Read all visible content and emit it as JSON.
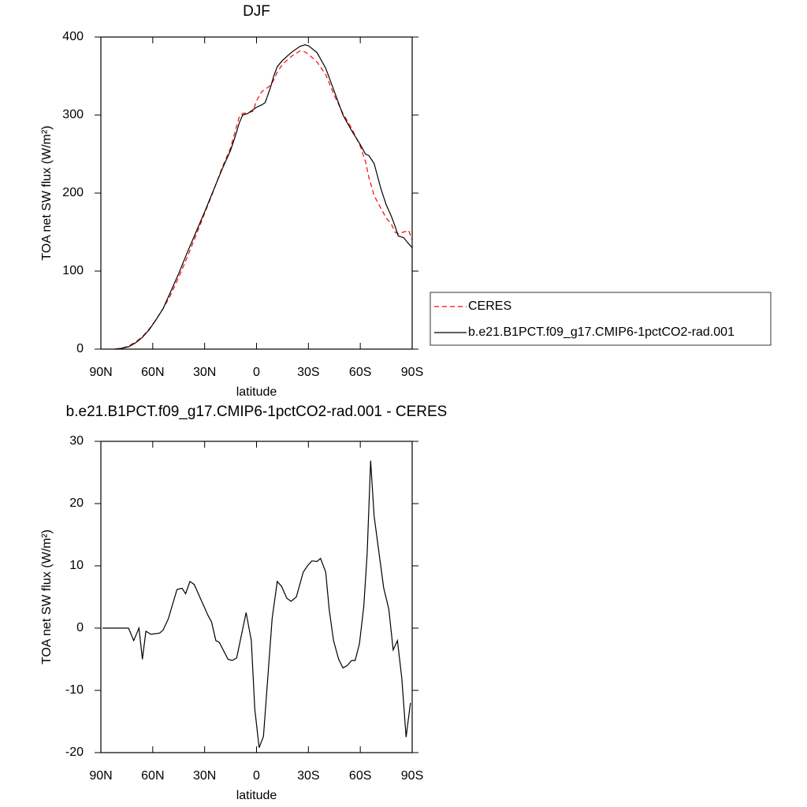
{
  "chart_data": [
    {
      "type": "line",
      "title": "DJF",
      "xlabel": "latitude",
      "ylabel": "TOA net SW flux (W/m²)",
      "x": [
        82,
        78,
        74,
        70,
        66,
        62,
        58,
        54,
        50,
        45,
        40,
        35,
        30,
        25,
        20,
        15,
        12,
        10,
        8,
        5,
        2,
        0,
        -3,
        -5,
        -8,
        -10,
        -12,
        -15,
        -20,
        -25,
        -28,
        -30,
        -35,
        -40,
        -45,
        -50,
        -55,
        -60,
        -63,
        -65,
        -68,
        -72,
        -75,
        -78,
        -80,
        -82,
        -85,
        -88,
        -90
      ],
      "series": [
        {
          "name": "CERES",
          "color": "#ff0000",
          "dash": true,
          "values": [
            0,
            1,
            4,
            9,
            16,
            26,
            38,
            52,
            68,
            92,
            118,
            146,
            174,
            202,
            232,
            258,
            282,
            298,
            302,
            303,
            305,
            318,
            330,
            333,
            338,
            345,
            355,
            365,
            375,
            382,
            381,
            378,
            368,
            352,
            325,
            302,
            283,
            260,
            240,
            220,
            197,
            180,
            168,
            160,
            150,
            148,
            150,
            152,
            140
          ]
        },
        {
          "name": "b.e21.B1PCT.f09_g17.CMIP6-1pctCO2-rad.001",
          "color": "#000000",
          "dash": false,
          "values": [
            0,
            1,
            3,
            8,
            15,
            25,
            38,
            52,
            72,
            97,
            124,
            150,
            176,
            203,
            230,
            255,
            275,
            290,
            300,
            302,
            307,
            310,
            313,
            316,
            335,
            350,
            362,
            370,
            380,
            388,
            390,
            389,
            380,
            360,
            330,
            300,
            280,
            262,
            250,
            248,
            238,
            205,
            185,
            170,
            158,
            145,
            143,
            135,
            130
          ]
        }
      ],
      "xlim": [
        90,
        -90
      ],
      "xticks": [
        {
          "value": 90,
          "label": "90N"
        },
        {
          "value": 60,
          "label": "60N"
        },
        {
          "value": 30,
          "label": "30N"
        },
        0,
        {
          "value": -30,
          "label": "30S"
        },
        {
          "value": -60,
          "label": "60S"
        },
        {
          "value": -90,
          "label": "90S"
        }
      ],
      "ylim": [
        0,
        400
      ],
      "yticks": [
        0,
        100,
        200,
        300,
        400
      ],
      "legend": "outside-right"
    },
    {
      "type": "line",
      "title": "b.e21.B1PCT.f09_g17.CMIP6-1pctCO2-rad.001 - CERES",
      "xlabel": "latitude",
      "ylabel": "TOA net SW flux (W/m²)",
      "x": [
        89,
        74,
        71,
        68,
        66,
        64,
        61,
        56,
        54,
        51,
        46,
        43,
        41,
        38.5,
        36,
        32,
        28,
        26,
        23.5,
        21.5,
        16.5,
        14,
        11.5,
        6,
        3,
        1,
        -1.5,
        -4,
        -9,
        -12,
        -14.5,
        -17.5,
        -20,
        -23,
        -27,
        -29.5,
        -32,
        -35,
        -37,
        -40,
        -42,
        -44.5,
        -47.5,
        -50,
        -52.5,
        -55,
        -57,
        -59.5,
        -62,
        -64,
        -66,
        -68,
        -73.5,
        -76.5,
        -79,
        -81.5,
        -84,
        -86.5,
        -89
      ],
      "values": [
        0,
        0,
        -2,
        0,
        -5,
        -0.5,
        -1,
        -0.8,
        -0.3,
        1.5,
        6.2,
        6.4,
        5.5,
        7.5,
        7,
        4.5,
        2,
        1,
        -2,
        -2.3,
        -5,
        -5.2,
        -4.8,
        2.5,
        -2,
        -13,
        -19.2,
        -17.4,
        1.5,
        7.5,
        6.7,
        4.8,
        4.3,
        5,
        9,
        10,
        10.8,
        10.7,
        11.2,
        9,
        3,
        -2,
        -5,
        -6.4,
        -6,
        -5.2,
        -5.2,
        -2.5,
        3.5,
        12,
        26.9,
        18,
        6.5,
        3,
        -3.5,
        -2,
        -8,
        -17.5,
        -12
      ],
      "color": "#000000",
      "xlim": [
        90,
        -90
      ],
      "xticks": [
        {
          "value": 90,
          "label": "90N"
        },
        {
          "value": 60,
          "label": "60N"
        },
        {
          "value": 30,
          "label": "30N"
        },
        0,
        {
          "value": -30,
          "label": "30S"
        },
        {
          "value": -60,
          "label": "60S"
        },
        {
          "value": -90,
          "label": "90S"
        }
      ],
      "ylim": [
        -20,
        30
      ],
      "yticks": [
        -20,
        -10,
        0,
        10,
        20,
        30
      ]
    }
  ]
}
